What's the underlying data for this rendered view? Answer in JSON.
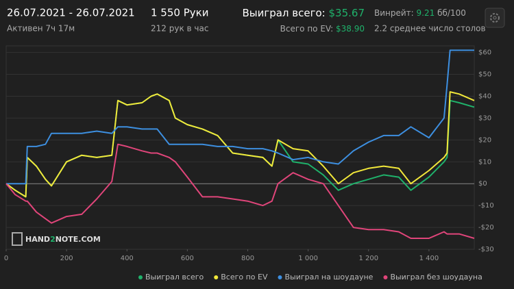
{
  "header": {
    "date_range": "26.07.2021 - 26.07.2021",
    "active": "Активен 7ч 17м",
    "hands": "1 550 Руки",
    "hands_per_hour": "212 рук в час",
    "won_label": "Выиграл всего:",
    "won_value": "$35.67",
    "ev_label": "Всего по EV:",
    "ev_value": "$38.90",
    "winrate_label": "Винрейт:",
    "winrate_value": "9.21",
    "winrate_unit": "бб/100",
    "tables": "2.2 среднее число столов"
  },
  "watermark": {
    "part1": "HAND",
    "part2": "2",
    "part3": "NOTE.COM"
  },
  "chart_data": {
    "type": "line",
    "x": [
      0,
      30,
      65,
      70,
      100,
      130,
      150,
      200,
      250,
      300,
      350,
      370,
      400,
      450,
      480,
      500,
      540,
      560,
      600,
      650,
      700,
      750,
      800,
      850,
      880,
      900,
      950,
      1000,
      1050,
      1100,
      1150,
      1200,
      1250,
      1300,
      1340,
      1400,
      1450,
      1460,
      1470,
      1500,
      1550
    ],
    "series": [
      {
        "name": "Выиграл всего",
        "color": "#1fb26b",
        "values": [
          0,
          -3,
          -6,
          12,
          8,
          2,
          -1,
          10,
          13,
          12,
          13,
          38,
          36,
          37,
          40,
          41,
          38,
          30,
          27,
          25,
          22,
          14,
          13,
          12,
          8,
          20,
          10,
          9,
          4,
          -3,
          0,
          2,
          4,
          3,
          -3,
          3,
          10,
          12,
          38,
          37,
          35
        ]
      },
      {
        "name": "Всего по EV",
        "color": "#f2e83a",
        "values": [
          0,
          -3,
          -6,
          12,
          8,
          2,
          -1,
          10,
          13,
          12,
          13,
          38,
          36,
          37,
          40,
          41,
          38,
          30,
          27,
          25,
          22,
          14,
          13,
          12,
          8,
          20,
          16,
          15,
          8,
          0,
          5,
          7,
          8,
          7,
          0,
          6,
          12,
          14,
          42,
          41,
          38
        ]
      },
      {
        "name": "Выиграл на шоудауне",
        "color": "#3d8fe0",
        "values": [
          0,
          0,
          0,
          17,
          17,
          18,
          23,
          23,
          23,
          24,
          23,
          26,
          26,
          25,
          25,
          25,
          18,
          18,
          18,
          18,
          17,
          17,
          16,
          16,
          15,
          14,
          11,
          12,
          10,
          9,
          15,
          19,
          22,
          22,
          26,
          21,
          30,
          45,
          61,
          61,
          61
        ]
      },
      {
        "name": "Выиграл без шоудауна",
        "color": "#e0457a",
        "values": [
          0,
          -5,
          -8,
          -8,
          -13,
          -16,
          -18,
          -15,
          -14,
          -7,
          1,
          18,
          17,
          15,
          14,
          14,
          12,
          10,
          3,
          -6,
          -6,
          -7,
          -8,
          -10,
          -8,
          0,
          5,
          2,
          0,
          -10,
          -20,
          -21,
          -21,
          -22,
          -25,
          -25,
          -22,
          -23,
          -23,
          -23,
          -25
        ]
      }
    ],
    "xlim": [
      0,
      1550
    ],
    "ylim": [
      -30,
      63
    ],
    "xticks": [
      0,
      200,
      400,
      600,
      800,
      {
        "value": 1000,
        "label": "1 000"
      },
      {
        "value": 1200,
        "label": "1 200"
      },
      {
        "value": 1400,
        "label": "1 400"
      }
    ],
    "yticks": [
      {
        "value": -30,
        "label": "-$30"
      },
      {
        "value": -20,
        "label": "-$20"
      },
      {
        "value": -10,
        "label": "-$10"
      },
      {
        "value": 0,
        "label": "$0"
      },
      {
        "value": 10,
        "label": "$10"
      },
      {
        "value": 20,
        "label": "$20"
      },
      {
        "value": 30,
        "label": "$30"
      },
      {
        "value": 40,
        "label": "$40"
      },
      {
        "value": 50,
        "label": "$50"
      },
      {
        "value": 60,
        "label": "$60"
      }
    ],
    "grid": true
  }
}
